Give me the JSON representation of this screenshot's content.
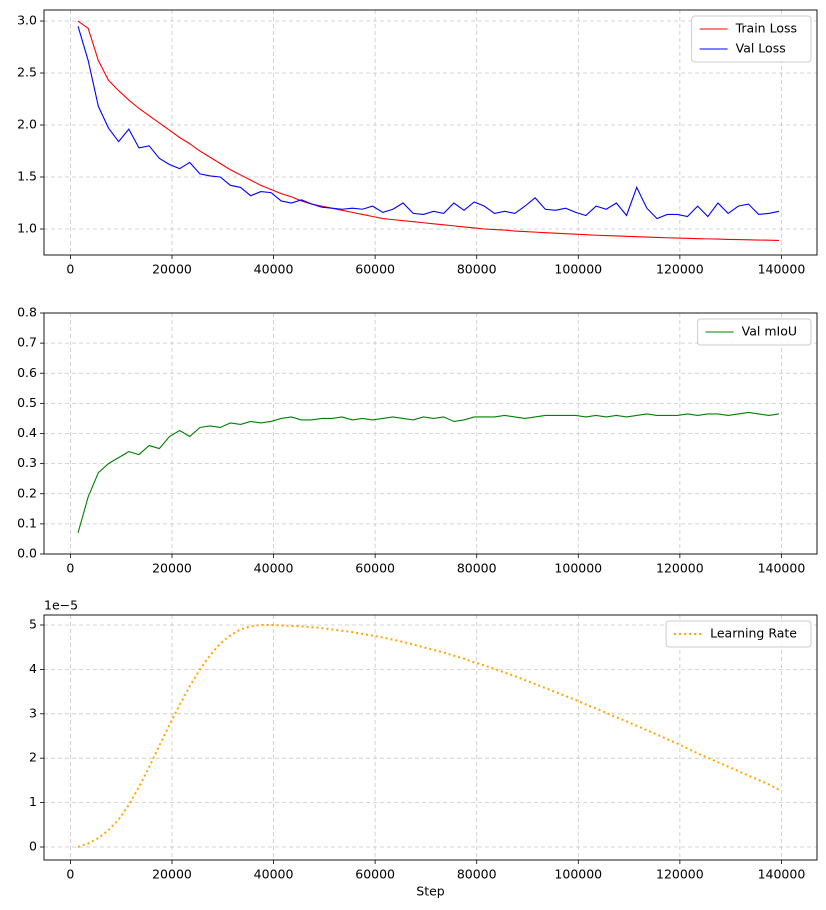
{
  "chart_data": [
    {
      "type": "line",
      "x": [
        1500,
        3500,
        5500,
        7500,
        9500,
        11500,
        13500,
        15500,
        17500,
        19500,
        21500,
        23500,
        25500,
        27500,
        29500,
        31500,
        33500,
        35500,
        37500,
        39500,
        41500,
        43500,
        45500,
        47500,
        49500,
        51500,
        53500,
        55500,
        57500,
        59500,
        61500,
        63500,
        65500,
        67500,
        69500,
        71500,
        73500,
        75500,
        77500,
        79500,
        81500,
        83500,
        85500,
        87500,
        89500,
        91500,
        93500,
        95500,
        97500,
        99500,
        101500,
        103500,
        105500,
        107500,
        109500,
        111500,
        113500,
        115500,
        117500,
        119500,
        121500,
        123500,
        125500,
        127500,
        129500,
        131500,
        133500,
        135500,
        137500,
        139500
      ],
      "series": [
        {
          "name": "Train Loss",
          "color": "#ff0000",
          "linestyle": "solid",
          "values": [
            3.0,
            2.93,
            2.62,
            2.43,
            2.33,
            2.24,
            2.16,
            2.09,
            2.02,
            1.95,
            1.88,
            1.82,
            1.75,
            1.69,
            1.63,
            1.57,
            1.52,
            1.47,
            1.42,
            1.38,
            1.34,
            1.31,
            1.27,
            1.24,
            1.22,
            1.2,
            1.18,
            1.16,
            1.14,
            1.12,
            1.1,
            1.09,
            1.08,
            1.07,
            1.06,
            1.05,
            1.04,
            1.03,
            1.02,
            1.01,
            1.0,
            0.995,
            0.99,
            0.98,
            0.975,
            0.97,
            0.965,
            0.96,
            0.955,
            0.95,
            0.945,
            0.94,
            0.937,
            0.933,
            0.93,
            0.926,
            0.922,
            0.919,
            0.916,
            0.913,
            0.91,
            0.907,
            0.905,
            0.903,
            0.9,
            0.898,
            0.896,
            0.894,
            0.892,
            0.89
          ]
        },
        {
          "name": "Val Loss",
          "color": "#0000ff",
          "linestyle": "solid",
          "values": [
            2.95,
            2.62,
            2.18,
            1.97,
            1.84,
            1.96,
            1.78,
            1.8,
            1.68,
            1.62,
            1.58,
            1.64,
            1.53,
            1.51,
            1.5,
            1.42,
            1.4,
            1.32,
            1.36,
            1.35,
            1.27,
            1.25,
            1.28,
            1.24,
            1.21,
            1.2,
            1.19,
            1.2,
            1.19,
            1.22,
            1.16,
            1.19,
            1.25,
            1.15,
            1.14,
            1.17,
            1.15,
            1.25,
            1.18,
            1.26,
            1.22,
            1.15,
            1.17,
            1.15,
            1.22,
            1.3,
            1.19,
            1.18,
            1.2,
            1.16,
            1.13,
            1.22,
            1.19,
            1.25,
            1.13,
            1.4,
            1.2,
            1.1,
            1.14,
            1.14,
            1.12,
            1.22,
            1.12,
            1.25,
            1.15,
            1.22,
            1.24,
            1.14,
            1.15,
            1.17
          ]
        }
      ],
      "xlim": [
        -5200,
        147000
      ],
      "xticks": [
        0,
        20000,
        40000,
        60000,
        80000,
        100000,
        120000,
        140000
      ],
      "ylim": [
        0.75,
        3.106
      ],
      "yticks": [
        {
          "value": 1,
          "label": "1.0"
        },
        1.5,
        {
          "value": 2,
          "label": "2.0"
        },
        2.5,
        {
          "value": 3,
          "label": "3.0"
        }
      ],
      "grid": true,
      "legend": "upper right"
    },
    {
      "type": "line",
      "x": [
        1500,
        3500,
        5500,
        7500,
        9500,
        11500,
        13500,
        15500,
        17500,
        19500,
        21500,
        23500,
        25500,
        27500,
        29500,
        31500,
        33500,
        35500,
        37500,
        39500,
        41500,
        43500,
        45500,
        47500,
        49500,
        51500,
        53500,
        55500,
        57500,
        59500,
        61500,
        63500,
        65500,
        67500,
        69500,
        71500,
        73500,
        75500,
        77500,
        79500,
        81500,
        83500,
        85500,
        87500,
        89500,
        91500,
        93500,
        95500,
        97500,
        99500,
        101500,
        103500,
        105500,
        107500,
        109500,
        111500,
        113500,
        115500,
        117500,
        119500,
        121500,
        123500,
        125500,
        127500,
        129500,
        131500,
        133500,
        135500,
        137500,
        139500
      ],
      "series": [
        {
          "name": "Val mIoU",
          "color": "#008000",
          "linestyle": "solid",
          "values": [
            0.07,
            0.19,
            0.27,
            0.3,
            0.32,
            0.34,
            0.33,
            0.36,
            0.35,
            0.39,
            0.41,
            0.39,
            0.42,
            0.425,
            0.42,
            0.435,
            0.43,
            0.44,
            0.435,
            0.44,
            0.45,
            0.455,
            0.445,
            0.445,
            0.45,
            0.45,
            0.455,
            0.445,
            0.45,
            0.445,
            0.45,
            0.455,
            0.45,
            0.445,
            0.455,
            0.45,
            0.455,
            0.44,
            0.445,
            0.455,
            0.455,
            0.455,
            0.46,
            0.455,
            0.45,
            0.455,
            0.46,
            0.46,
            0.46,
            0.46,
            0.455,
            0.46,
            0.455,
            0.46,
            0.455,
            0.46,
            0.465,
            0.46,
            0.46,
            0.46,
            0.465,
            0.46,
            0.465,
            0.465,
            0.46,
            0.465,
            0.47,
            0.465,
            0.46,
            0.465
          ]
        }
      ],
      "xlim": [
        -5200,
        147000
      ],
      "xticks": [
        0,
        20000,
        40000,
        60000,
        80000,
        100000,
        120000,
        140000
      ],
      "ylim": [
        0,
        0.8
      ],
      "yticks": [
        {
          "value": 0,
          "label": "0.0"
        },
        0.1,
        0.2,
        0.3,
        0.4,
        0.5,
        0.6,
        0.7,
        0.8
      ],
      "grid": true,
      "legend": "upper right"
    },
    {
      "type": "line",
      "x": [
        1500,
        3500,
        5500,
        7500,
        9500,
        11500,
        13500,
        15500,
        17500,
        19500,
        21500,
        23500,
        25500,
        27500,
        29500,
        31500,
        33500,
        35500,
        37500,
        39500,
        41500,
        43500,
        45500,
        47500,
        49500,
        51500,
        53500,
        55500,
        57500,
        59500,
        61500,
        63500,
        65500,
        67500,
        69500,
        71500,
        73500,
        75500,
        77500,
        79500,
        81500,
        83500,
        85500,
        87500,
        89500,
        91500,
        93500,
        95500,
        97500,
        99500,
        101500,
        103500,
        105500,
        107500,
        109500,
        111500,
        113500,
        115500,
        117500,
        119500,
        121500,
        123500,
        125500,
        127500,
        129500,
        131500,
        133500,
        135500,
        137500,
        139500
      ],
      "series": [
        {
          "name": "Learning Rate",
          "color": "#ffa500",
          "linestyle": "dotted",
          "values": [
            0.0,
            0.08,
            0.2,
            0.38,
            0.62,
            0.95,
            1.35,
            1.8,
            2.28,
            2.75,
            3.2,
            3.62,
            4.0,
            4.32,
            4.58,
            4.77,
            4.9,
            4.97,
            5.0,
            5.0,
            4.99,
            4.98,
            4.97,
            4.95,
            4.93,
            4.9,
            4.87,
            4.84,
            4.8,
            4.76,
            4.72,
            4.67,
            4.62,
            4.56,
            4.5,
            4.44,
            4.38,
            4.31,
            4.24,
            4.16,
            4.09,
            4.01,
            3.93,
            3.85,
            3.76,
            3.67,
            3.58,
            3.49,
            3.4,
            3.31,
            3.21,
            3.12,
            3.02,
            2.92,
            2.83,
            2.73,
            2.63,
            2.53,
            2.43,
            2.33,
            2.22,
            2.11,
            2.01,
            1.91,
            1.81,
            1.71,
            1.61,
            1.51,
            1.41,
            1.29
          ]
        }
      ],
      "xlim": [
        -5200,
        147000
      ],
      "xticks": [
        0,
        20000,
        40000,
        60000,
        80000,
        100000,
        120000,
        140000
      ],
      "ylim": [
        -0.293,
        5.225
      ],
      "yticks": [
        0,
        1,
        2,
        3,
        4,
        5
      ],
      "y_offset_label": "1e−5",
      "xlabel": "Step",
      "grid": true,
      "legend": "upper right"
    }
  ]
}
